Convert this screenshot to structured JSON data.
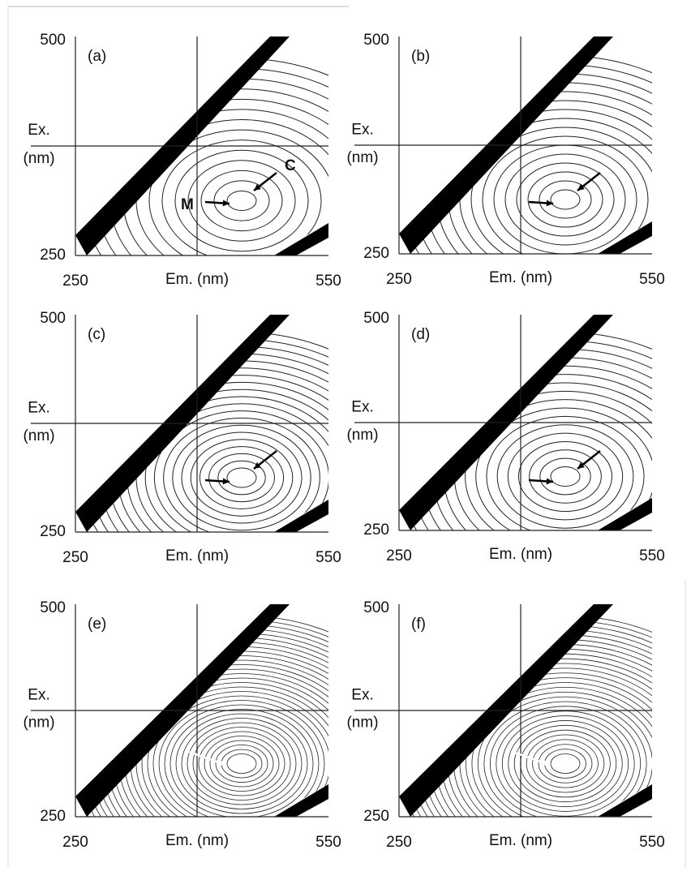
{
  "panels": [
    {
      "label": "(a)",
      "y_label": [
        "Ex.",
        "(nm)"
      ],
      "x_label": "Em. (nm)",
      "y_ticks": [
        "500",
        "250"
      ],
      "x_ticks": [
        "250",
        "550"
      ],
      "annotations": [
        "M",
        "C"
      ]
    },
    {
      "label": "(b)",
      "y_label": [
        "Ex.",
        "(nm)"
      ],
      "x_label": "Em. (nm)",
      "y_ticks": [
        "500",
        "250"
      ],
      "x_ticks": [
        "250",
        "550"
      ]
    },
    {
      "label": "(c)",
      "y_label": [
        "Ex.",
        "(nm)"
      ],
      "x_label": "Em. (nm)",
      "y_ticks": [
        "500",
        "250"
      ],
      "x_ticks": [
        "250",
        "550"
      ]
    },
    {
      "label": "(d)",
      "y_label": [
        "Ex.",
        "(nm)"
      ],
      "x_label": "Em. (nm)",
      "y_ticks": [
        "500",
        "250"
      ],
      "x_ticks": [
        "250",
        "550"
      ]
    },
    {
      "label": "(e)",
      "y_label": [
        "Ex.",
        "(nm)"
      ],
      "x_label": "Em. (nm)",
      "y_ticks": [
        "500",
        "250"
      ],
      "x_ticks": [
        "250",
        "550"
      ]
    },
    {
      "label": "(f)",
      "y_label": [
        "Ex.",
        "(nm)"
      ],
      "x_label": "Em. (nm)",
      "y_ticks": [
        "500",
        "250"
      ],
      "x_ticks": [
        "250",
        "550"
      ]
    }
  ]
}
